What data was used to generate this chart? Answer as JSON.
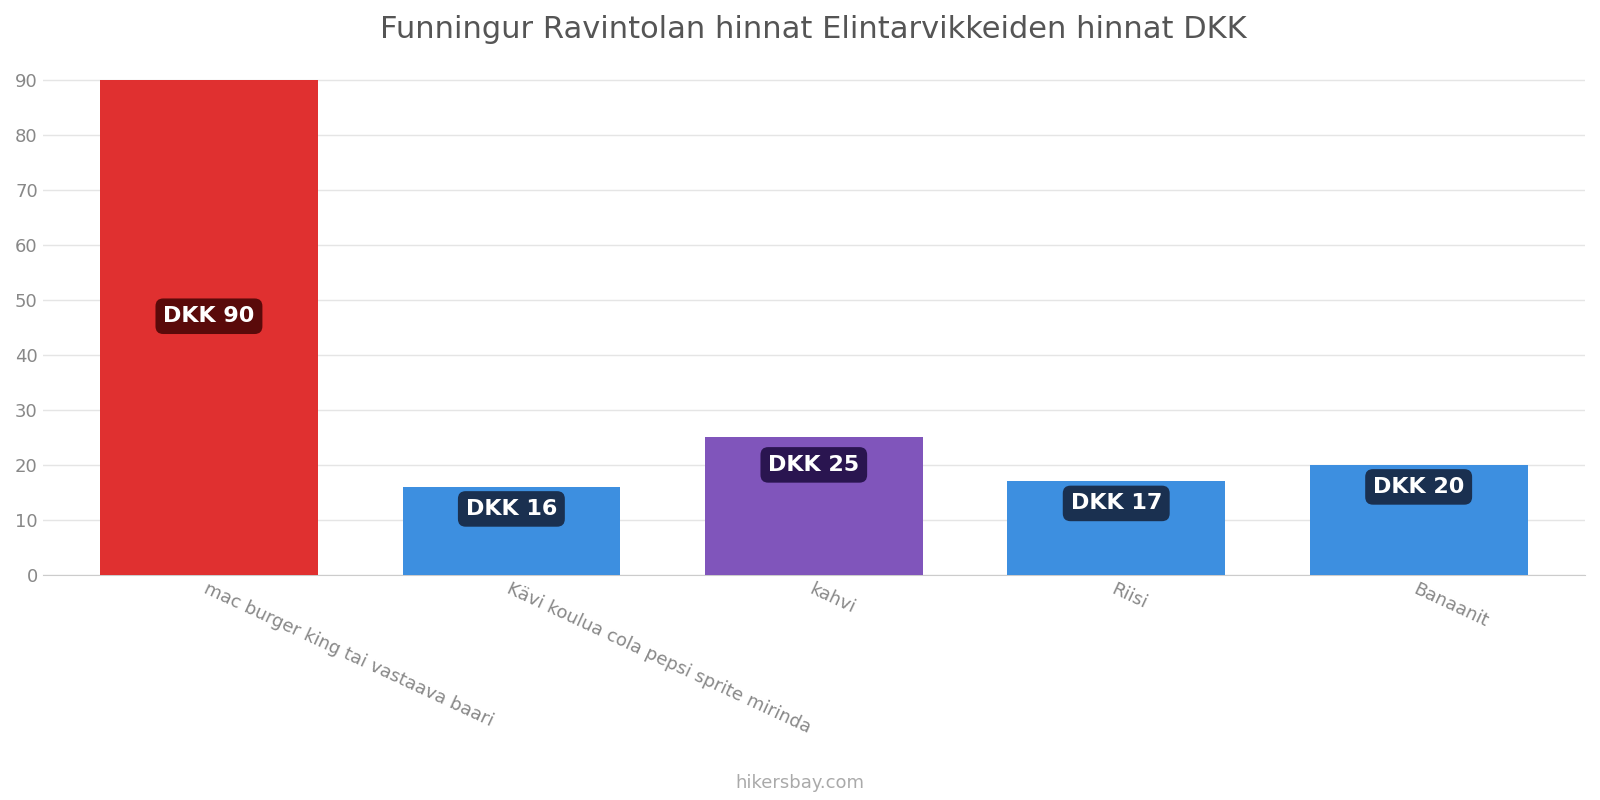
{
  "title": "Funningur Ravintolan hinnat Elintarvikkeiden hinnat DKK",
  "categories": [
    "mac burger king tai vastaava baari",
    "Kävi koulua cola pepsi sprite mirinda",
    "kahvi",
    "Riisi",
    "Banaanit"
  ],
  "values": [
    90,
    16,
    25,
    17,
    20
  ],
  "bar_colors": [
    "#e03030",
    "#3d8fe0",
    "#8055bb",
    "#3d8fe0",
    "#3d8fe0"
  ],
  "label_bg_colors": [
    "#5a0a0a",
    "#1a3050",
    "#2a1550",
    "#1a3050",
    "#1a3050"
  ],
  "labels": [
    "DKK 90",
    "DKK 16",
    "DKK 25",
    "DKK 17",
    "DKK 20"
  ],
  "label_y_positions": [
    47,
    12,
    20,
    13,
    16
  ],
  "ylim": [
    0,
    93
  ],
  "yticks": [
    0,
    10,
    20,
    30,
    40,
    50,
    60,
    70,
    80,
    90
  ],
  "background_color": "#ffffff",
  "title_fontsize": 22,
  "axis_label_fontsize": 13,
  "annotation_fontsize": 16,
  "watermark": "hikersbay.com",
  "bar_width": 0.72,
  "xlim_left": -0.55,
  "xlim_right": 4.55
}
